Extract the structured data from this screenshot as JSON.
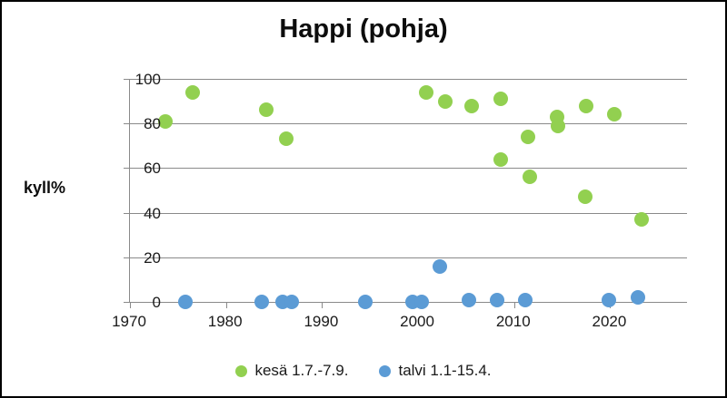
{
  "chart_data": {
    "type": "scatter",
    "title": "Happi (pohja)",
    "xlabel": "",
    "ylabel": "kyll%",
    "xlim": [
      1970,
      2028
    ],
    "ylim": [
      0,
      100
    ],
    "x_ticks": [
      1970,
      1980,
      1990,
      2000,
      2010,
      2020
    ],
    "y_ticks": [
      0,
      20,
      40,
      60,
      80,
      100
    ],
    "grid": "horizontal",
    "legend_position": "bottom-center",
    "axis_color": "#8a8a8a",
    "gridline_color": "#8a8a8a",
    "text_color": "#1a1a1a",
    "series": [
      {
        "name": "kesä 1.7.-7.9.",
        "color": "#92d050",
        "marker": "circle",
        "points": [
          [
            1973.7,
            81
          ],
          [
            1976.5,
            94
          ],
          [
            1984.2,
            86
          ],
          [
            1986.3,
            73
          ],
          [
            2000.8,
            94
          ],
          [
            2002.8,
            90
          ],
          [
            2005.6,
            88
          ],
          [
            2008.6,
            91
          ],
          [
            2008.6,
            64
          ],
          [
            2011.4,
            74
          ],
          [
            2011.6,
            56
          ],
          [
            2014.5,
            83
          ],
          [
            2014.6,
            79
          ],
          [
            2017.5,
            88
          ],
          [
            2017.4,
            47
          ],
          [
            2020.4,
            84
          ],
          [
            2023.3,
            37
          ]
        ]
      },
      {
        "name": "talvi 1.1-15.4.",
        "color": "#5b9bd5",
        "marker": "circle",
        "points": [
          [
            1975.8,
            0
          ],
          [
            1983.7,
            0
          ],
          [
            1985.9,
            0
          ],
          [
            1986.8,
            0
          ],
          [
            1994.5,
            0
          ],
          [
            1999.4,
            0
          ],
          [
            2000.4,
            0
          ],
          [
            2002.3,
            16
          ],
          [
            2005.3,
            1
          ],
          [
            2008.2,
            1
          ],
          [
            2011.2,
            1
          ],
          [
            2019.9,
            1
          ],
          [
            2022.9,
            2
          ]
        ]
      }
    ]
  }
}
